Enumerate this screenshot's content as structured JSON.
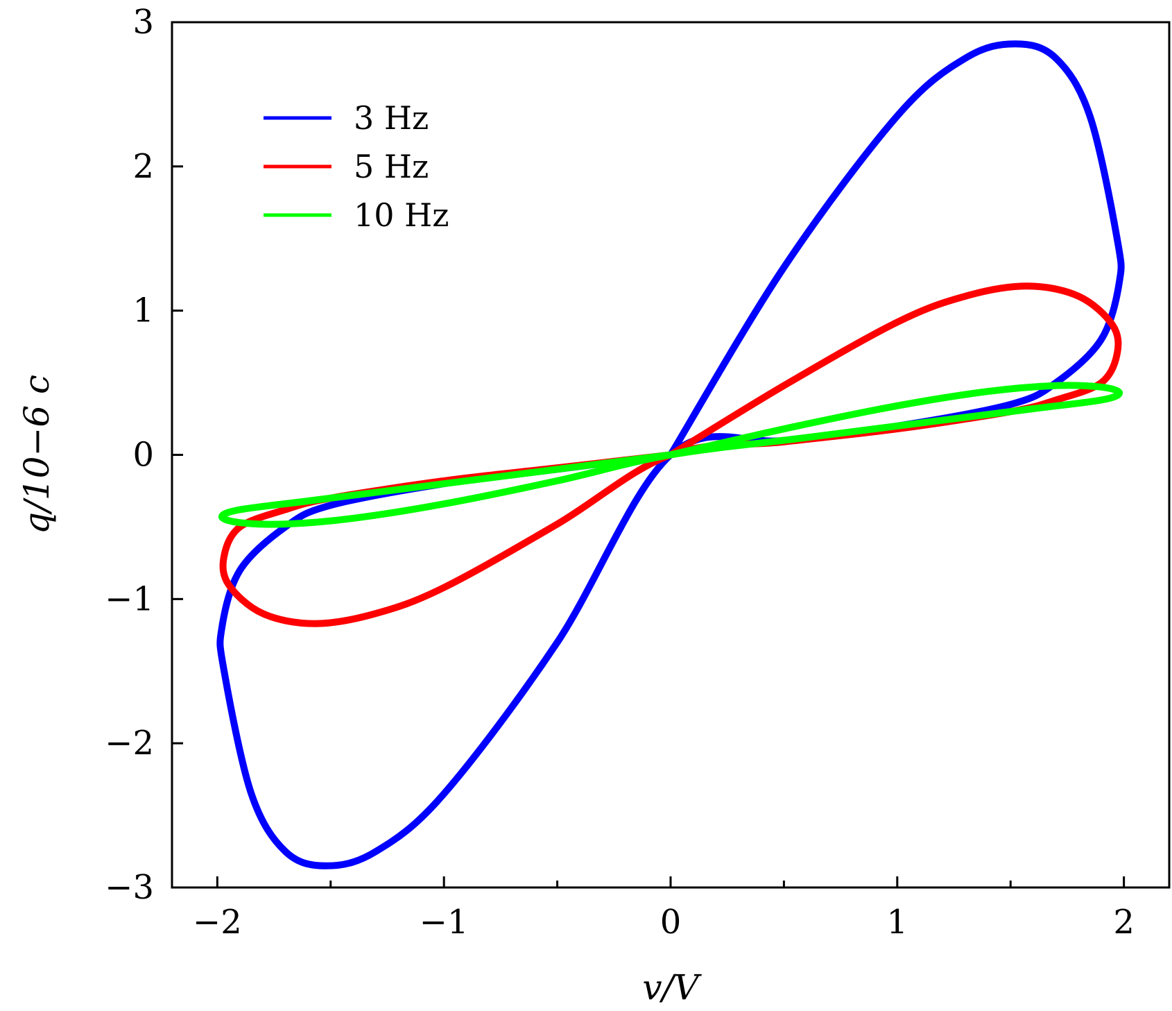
{
  "chart_data": {
    "type": "line",
    "title": "",
    "xlabel": "v/V",
    "ylabel": "q/10−6 c",
    "xlim": [
      -2.2,
      2.2
    ],
    "ylim": [
      -3,
      3
    ],
    "xticks": [
      -2,
      -1,
      0,
      1,
      2
    ],
    "xtick_labels": [
      "−2",
      "−1",
      "0",
      "1",
      "2"
    ],
    "yticks": [
      -3,
      -2,
      -1,
      0,
      1,
      2,
      3
    ],
    "ytick_labels": [
      "−3",
      "−2",
      "−1",
      "0",
      "1",
      "2",
      "3"
    ],
    "grid": false,
    "legend_position": "top-left",
    "series": [
      {
        "name": "3 Hz",
        "color": "#0000ff",
        "points": [
          [
            0,
            0
          ],
          [
            0.5,
            1.3
          ],
          [
            1.0,
            2.35
          ],
          [
            1.3,
            2.75
          ],
          [
            1.52,
            2.85
          ],
          [
            1.7,
            2.75
          ],
          [
            1.85,
            2.35
          ],
          [
            1.97,
            1.5
          ],
          [
            1.98,
            1.2
          ],
          [
            1.9,
            0.8
          ],
          [
            1.7,
            0.5
          ],
          [
            1.5,
            0.35
          ],
          [
            1.0,
            0.2
          ],
          [
            0.5,
            0.1
          ],
          [
            0,
            0
          ],
          [
            -0.5,
            -1.3
          ],
          [
            -1.0,
            -2.35
          ],
          [
            -1.3,
            -2.75
          ],
          [
            -1.52,
            -2.85
          ],
          [
            -1.7,
            -2.75
          ],
          [
            -1.85,
            -2.35
          ],
          [
            -1.97,
            -1.5
          ],
          [
            -1.98,
            -1.2
          ],
          [
            -1.9,
            -0.8
          ],
          [
            -1.7,
            -0.5
          ],
          [
            -1.5,
            -0.35
          ],
          [
            -1.0,
            -0.2
          ],
          [
            -0.5,
            -0.1
          ],
          [
            0,
            0
          ]
        ]
      },
      {
        "name": "5 Hz",
        "color": "#ff0000",
        "points": [
          [
            0,
            0
          ],
          [
            0.5,
            0.48
          ],
          [
            1.0,
            0.92
          ],
          [
            1.3,
            1.1
          ],
          [
            1.57,
            1.17
          ],
          [
            1.8,
            1.1
          ],
          [
            1.95,
            0.9
          ],
          [
            1.97,
            0.7
          ],
          [
            1.9,
            0.5
          ],
          [
            1.7,
            0.38
          ],
          [
            1.5,
            0.3
          ],
          [
            1.0,
            0.18
          ],
          [
            0.5,
            0.09
          ],
          [
            0,
            0
          ],
          [
            -0.5,
            -0.48
          ],
          [
            -1.0,
            -0.92
          ],
          [
            -1.3,
            -1.1
          ],
          [
            -1.57,
            -1.17
          ],
          [
            -1.8,
            -1.1
          ],
          [
            -1.95,
            -0.9
          ],
          [
            -1.97,
            -0.7
          ],
          [
            -1.9,
            -0.5
          ],
          [
            -1.7,
            -0.38
          ],
          [
            -1.5,
            -0.3
          ],
          [
            -1.0,
            -0.18
          ],
          [
            -0.5,
            -0.09
          ],
          [
            0,
            0
          ]
        ]
      },
      {
        "name": "10 Hz",
        "color": "#00ff00",
        "points": [
          [
            0,
            0
          ],
          [
            0.5,
            0.18
          ],
          [
            1.0,
            0.34
          ],
          [
            1.4,
            0.44
          ],
          [
            1.7,
            0.48
          ],
          [
            1.9,
            0.47
          ],
          [
            1.98,
            0.43
          ],
          [
            1.9,
            0.38
          ],
          [
            1.6,
            0.32
          ],
          [
            1.2,
            0.24
          ],
          [
            0.6,
            0.12
          ],
          [
            0,
            0
          ],
          [
            -0.5,
            -0.18
          ],
          [
            -1.0,
            -0.34
          ],
          [
            -1.4,
            -0.44
          ],
          [
            -1.7,
            -0.48
          ],
          [
            -1.9,
            -0.47
          ],
          [
            -1.98,
            -0.43
          ],
          [
            -1.9,
            -0.38
          ],
          [
            -1.6,
            -0.32
          ],
          [
            -1.2,
            -0.24
          ],
          [
            -0.6,
            -0.12
          ],
          [
            0,
            0
          ]
        ]
      }
    ]
  }
}
